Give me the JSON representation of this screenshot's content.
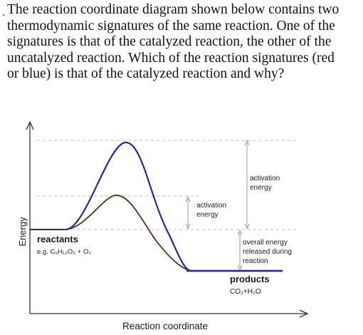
{
  "question": {
    "lead_mark": ".",
    "lines": [
      "The reaction coordinate diagram shown below contains two",
      "thermodynamic signatures of the same reaction. One of the",
      "signatures is that of the catalyzed reaction, the other of the",
      "uncatalyzed reaction. Which of the reaction signatures (red",
      "or blue) is that of the catalyzed reaction and why?"
    ]
  },
  "diagram": {
    "y_axis_label": "Energy",
    "x_axis_label": "Reaction coordinate",
    "reactants_label": "reactants",
    "reactants_formula": "e.g. C₆H₁₂O₆ + O₂",
    "products_label": "products",
    "products_formula": "CO₂+H₂O",
    "activation_large_line1": "activation",
    "activation_large_line2": "energy",
    "activation_small_line1": "activation",
    "activation_small_line2": "energy",
    "overall_line1": "overall energy",
    "overall_line2": "released during",
    "overall_line3": "reaction",
    "colors": {
      "blue_curve": "#1f2aa8",
      "red_curve": "#5a2a12",
      "axes": "#333333",
      "guides": "#bdbdbd",
      "arrows": "#9a9a9a"
    }
  }
}
